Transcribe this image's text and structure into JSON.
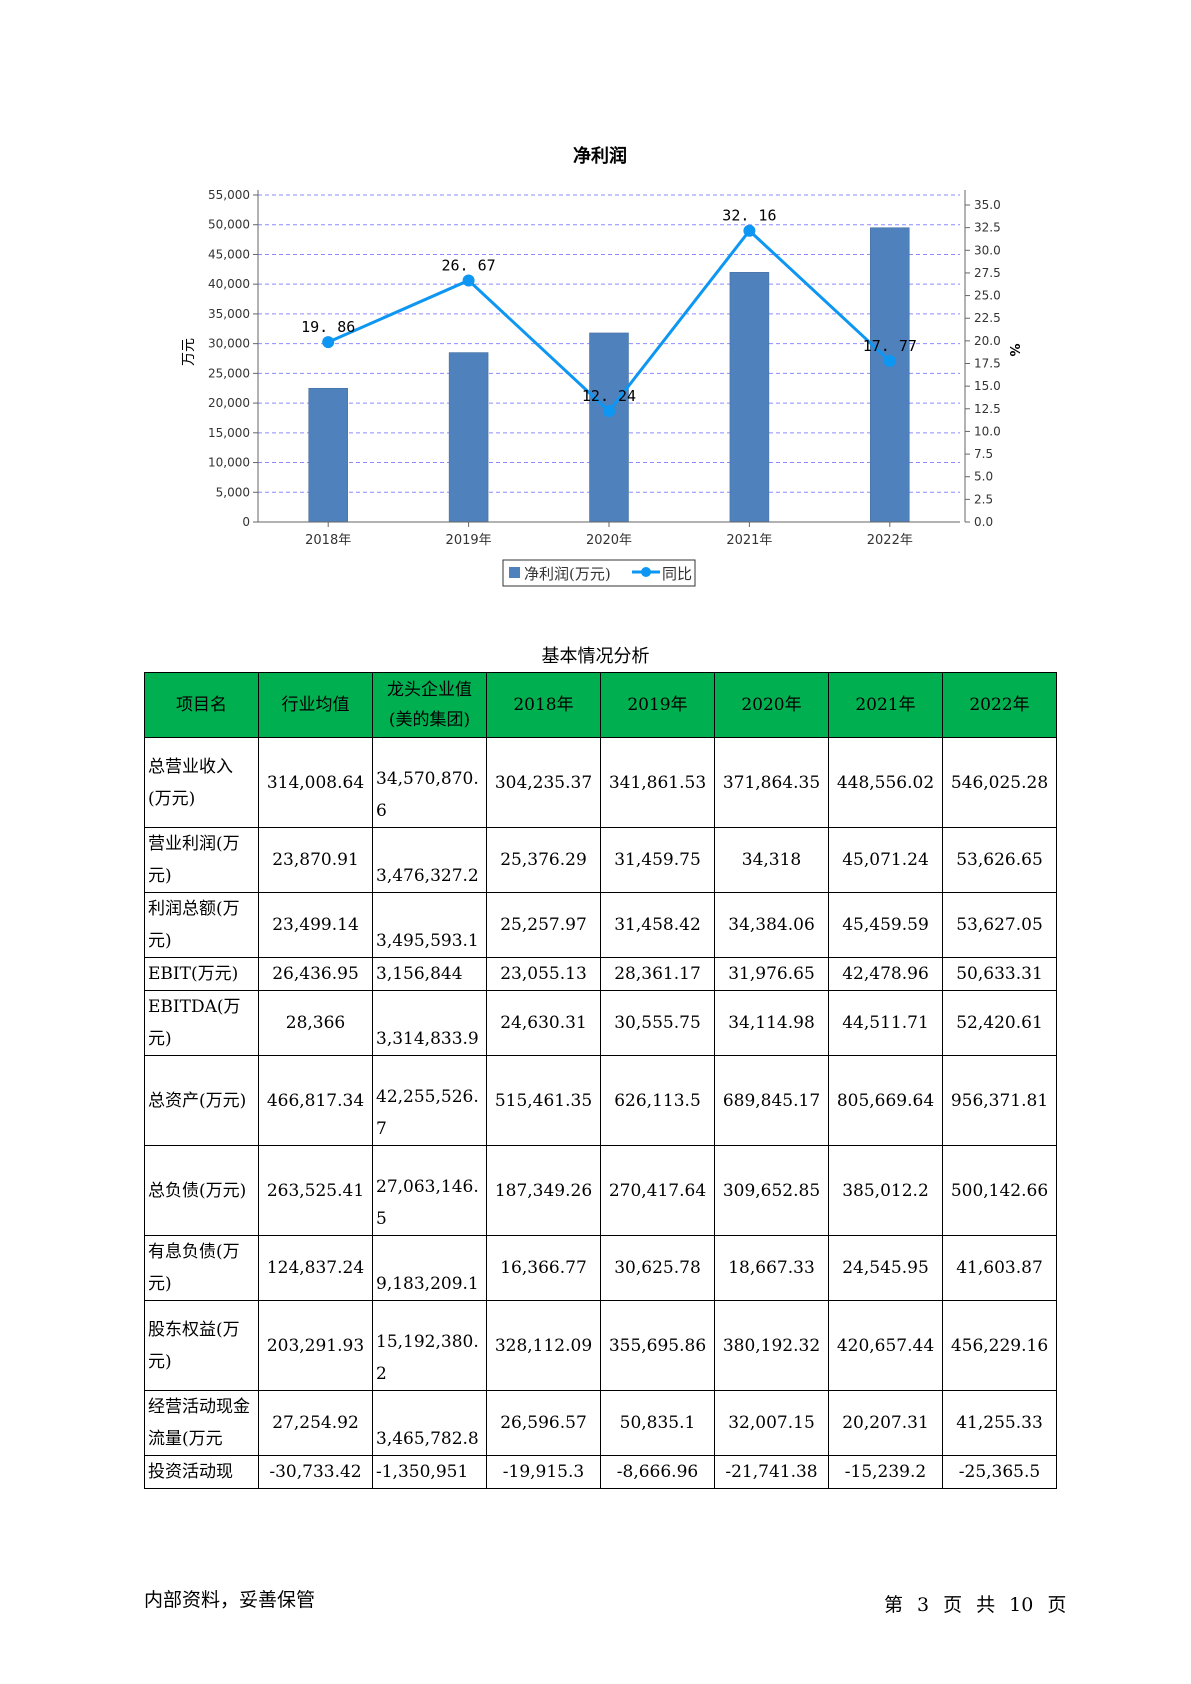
{
  "chart_data": {
    "type": "bar",
    "title": "净利润",
    "categories": [
      "2018年",
      "2019年",
      "2020年",
      "2021年",
      "2022年"
    ],
    "series": [
      {
        "name": "净利润(万元)",
        "type": "bar",
        "axis": "left",
        "values": [
          22500,
          28500,
          31800,
          42000,
          49500
        ]
      },
      {
        "name": "同比",
        "type": "line",
        "axis": "right",
        "values": [
          19.86,
          26.67,
          12.24,
          32.16,
          17.77
        ]
      }
    ],
    "ylabel_left": "万元",
    "ylabel_right": "%",
    "ylim_left": [
      0,
      55000
    ],
    "yticks_left": [
      "0",
      "5,000",
      "10,000",
      "15,000",
      "20,000",
      "25,000",
      "30,000",
      "35,000",
      "40,000",
      "45,000",
      "50,000",
      "55,000"
    ],
    "ylim_right": [
      0,
      35
    ],
    "yticks_right": [
      "0.0",
      "2.5",
      "5.0",
      "7.5",
      "10.0",
      "12.5",
      "15.0",
      "17.5",
      "20.0",
      "22.5",
      "25.0",
      "27.5",
      "30.0",
      "32.5",
      "35.0"
    ],
    "line_labels": [
      "19. 86",
      "26. 67",
      "12. 24",
      "32. 16",
      "17. 77"
    ],
    "grid": true,
    "legend_position": "bottom-center",
    "colors": {
      "bar": "#4f81bd",
      "line": "#0d96f2",
      "grid": "#8c8cff"
    }
  },
  "table": {
    "caption": "基本情况分析",
    "headers": [
      "项目名",
      "行业均值",
      "龙头企业值(美的集团)",
      "2018年",
      "2019年",
      "2020年",
      "2021年",
      "2022年"
    ],
    "rows": [
      [
        "总营业收入(万元)",
        "314,008.64",
        "34,570,870.6",
        "304,235.37",
        "341,861.53",
        "371,864.35",
        "448,556.02",
        "546,025.28"
      ],
      [
        "营业利润(万元)",
        "23,870.91",
        "3,476,327.2",
        "25,376.29",
        "31,459.75",
        "34,318",
        "45,071.24",
        "53,626.65"
      ],
      [
        "利润总额(万元)",
        "23,499.14",
        "3,495,593.1",
        "25,257.97",
        "31,458.42",
        "34,384.06",
        "45,459.59",
        "53,627.05"
      ],
      [
        "EBIT(万元)",
        "26,436.95",
        "3,156,844",
        "23,055.13",
        "28,361.17",
        "31,976.65",
        "42,478.96",
        "50,633.31"
      ],
      [
        "EBITDA(万元)",
        "28,366",
        "3,314,833.9",
        "24,630.31",
        "30,555.75",
        "34,114.98",
        "44,511.71",
        "52,420.61"
      ],
      [
        "总资产(万元)",
        "466,817.34",
        "42,255,526.7",
        "515,461.35",
        "626,113.5",
        "689,845.17",
        "805,669.64",
        "956,371.81"
      ],
      [
        "总负债(万元)",
        "263,525.41",
        "27,063,146.5",
        "187,349.26",
        "270,417.64",
        "309,652.85",
        "385,012.2",
        "500,142.66"
      ],
      [
        "有息负债(万元)",
        "124,837.24",
        "9,183,209.1",
        "16,366.77",
        "30,625.78",
        "18,667.33",
        "24,545.95",
        "41,603.87"
      ],
      [
        "股东权益(万元)",
        "203,291.93",
        "15,192,380.2",
        "328,112.09",
        "355,695.86",
        "380,192.32",
        "420,657.44",
        "456,229.16"
      ],
      [
        "经营活动现金流量(万元",
        "27,254.92",
        "3,465,782.8",
        "26,596.57",
        "50,835.1",
        "32,007.15",
        "20,207.31",
        "41,255.33"
      ],
      [
        "投资活动现",
        "-30,733.42",
        "-1,350,951",
        "-19,915.3",
        "-8,666.96",
        "-21,741.38",
        "-15,239.2",
        "-25,365.5"
      ]
    ],
    "header_color": "#00b050"
  },
  "footer": {
    "left": "内部资料，妥善保管",
    "page_prefix": "第",
    "page_current": "3",
    "page_unit": "页",
    "total_prefix": "共",
    "page_total": "10",
    "total_unit": "页"
  }
}
